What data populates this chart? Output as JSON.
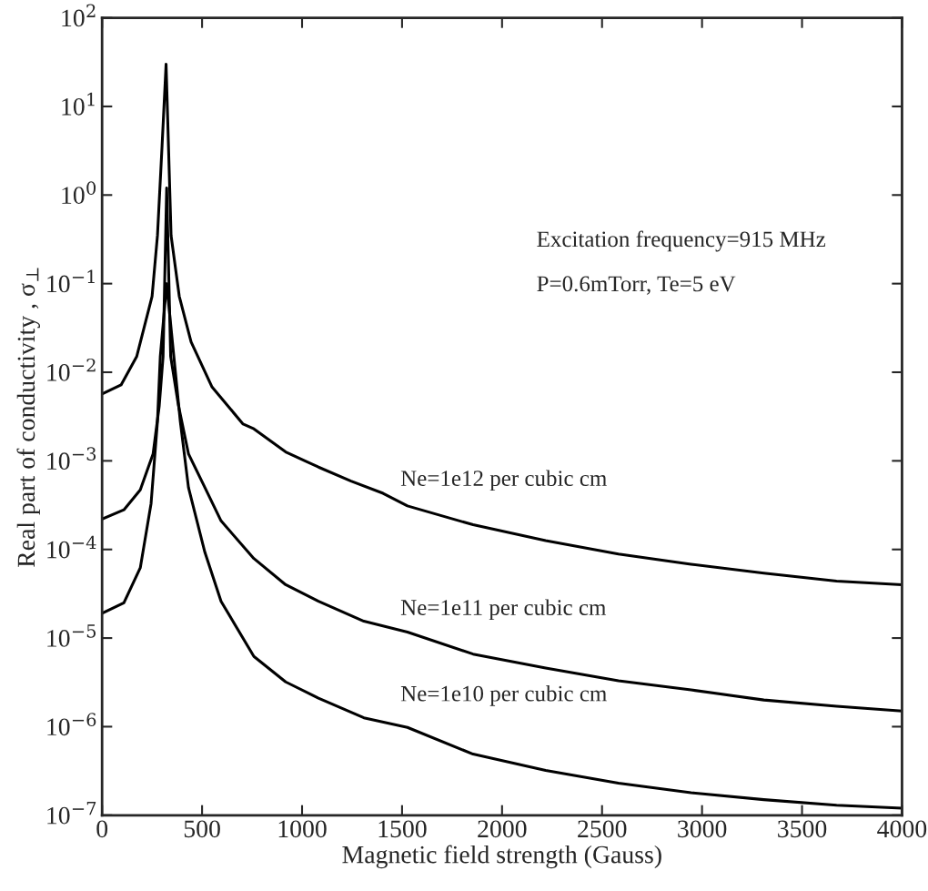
{
  "chart_data": {
    "type": "line",
    "xlabel": "Magnetic field strength (Gauss)",
    "ylabel": "Real part of conductivity , σ$_{⊥}$",
    "log": "y",
    "xlim": [
      0,
      4000
    ],
    "xticks": [
      0,
      500,
      1000,
      1500,
      2000,
      2500,
      3000,
      3500,
      4000
    ],
    "ylim": [
      1e-07,
      100
    ],
    "yticks": [
      {
        "value": 1e-07,
        "label": "10$^{−7}$"
      },
      {
        "value": 1e-06,
        "label": "10$^{−6}$"
      },
      {
        "value": 1e-05,
        "label": "10$^{−5}$"
      },
      {
        "value": 0.0001,
        "label": "10$^{−4}$"
      },
      {
        "value": 0.001,
        "label": "10$^{−3}$"
      },
      {
        "value": 0.01,
        "label": "10$^{−2}$"
      },
      {
        "value": 0.1,
        "label": "10$^{−1}$"
      },
      {
        "value": 1,
        "label": "10$^{0}$"
      },
      {
        "value": 10,
        "label": "10$^{1}$"
      },
      {
        "value": 100,
        "label": "10$^{2}$"
      }
    ],
    "grid": false,
    "marker": "none",
    "line_style": "solid",
    "series": [
      {
        "color": "#000000",
        "x": [
          0,
          95,
          173,
          250,
          277,
          300,
          320,
          332,
          345,
          386,
          445,
          550,
          705,
          759,
          918,
          1082,
          1245,
          1405,
          1527,
          1855,
          2218,
          2582,
          2945,
          3309,
          3673,
          4000
        ],
        "values": [
          0.0057,
          0.0072,
          0.015,
          0.072,
          0.35,
          3.6,
          30,
          3.6,
          0.35,
          0.072,
          0.022,
          0.0068,
          0.0026,
          0.0023,
          0.00126,
          0.00085,
          0.00059,
          0.00043,
          0.00031,
          0.00019,
          0.000126,
          8.9e-05,
          6.8e-05,
          5.4e-05,
          4.4e-05,
          4e-05
        ]
      },
      {
        "color": "#000000",
        "x": [
          0,
          109,
          191,
          255,
          286,
          305,
          323,
          343,
          382,
          432,
          514,
          595,
          759,
          918,
          1082,
          1309,
          1527,
          1855,
          2218,
          2582,
          2945,
          3309,
          3673,
          4000
        ],
        "values": [
          0.00022,
          0.00028,
          0.00047,
          0.0012,
          0.0042,
          0.015,
          1.2,
          0.015,
          0.0042,
          0.0012,
          0.0005,
          0.00021,
          7.9e-05,
          4e-05,
          2.6e-05,
          1.55e-05,
          1.17e-05,
          6.6e-06,
          4.6e-06,
          3.3e-06,
          2.6e-06,
          2e-06,
          1.7e-06,
          1.5e-06
        ]
      },
      {
        "color": "#000000",
        "x": [
          0,
          109,
          191,
          245,
          277,
          291,
          323,
          359,
          391,
          432,
          514,
          595,
          759,
          918,
          1082,
          1309,
          1527,
          1855,
          2218,
          2582,
          2945,
          3309,
          3673,
          4000
        ],
        "values": [
          1.9e-05,
          2.5e-05,
          6.2e-05,
          0.00033,
          0.0028,
          0.015,
          0.1,
          0.015,
          0.0028,
          0.0005,
          9.3e-05,
          2.6e-05,
          6.2e-06,
          3.2e-06,
          2.1e-06,
          1.26e-06,
          9.8e-07,
          4.9e-07,
          3.2e-07,
          2.3e-07,
          1.8e-07,
          1.5e-07,
          1.3e-07,
          1.2e-07
        ]
      }
    ],
    "annotations": [
      "Excitation frequency=915 MHz",
      "P=0.6mTorr, Te=5 eV",
      "Ne=1e12 per cubic cm",
      "Ne=1e11 per cubic cm",
      "Ne=1e10 per cubic cm"
    ]
  }
}
